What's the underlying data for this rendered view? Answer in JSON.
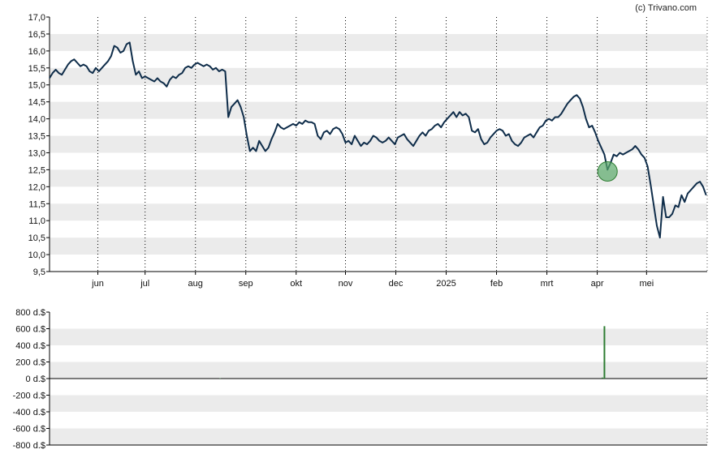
{
  "credit": "(c) Trivano.com",
  "colors": {
    "price_line": "#0f2d4a",
    "band": "#ebebeb",
    "axis": "#000000",
    "volume_bar": "#2e7d32",
    "marker_fill": "#5aaa6a",
    "marker_stroke": "#2e7d32"
  },
  "chart_data": [
    {
      "type": "line",
      "x_tick_labels": [
        "jun",
        "jul",
        "aug",
        "sep",
        "okt",
        "nov",
        "dec",
        "2025",
        "feb",
        "mrt",
        "apr",
        "mei"
      ],
      "y_tick_labels": [
        "17,0",
        "16,5",
        "16,0",
        "15,5",
        "15,0",
        "14,5",
        "14,0",
        "13,5",
        "13,0",
        "12,5",
        "12,0",
        "11,5",
        "11,0",
        "10,5",
        "10,0",
        "9,5"
      ],
      "ylim": [
        9.5,
        17.0
      ],
      "grid": "alternating horizontal bands, dotted vertical lines at month ticks",
      "series": [
        {
          "points": [
            [
              0.0,
              15.2
            ],
            [
              0.3,
              15.35
            ],
            [
              0.6,
              15.45
            ],
            [
              0.9,
              15.35
            ],
            [
              1.2,
              15.3
            ],
            [
              1.5,
              15.45
            ],
            [
              1.8,
              15.6
            ],
            [
              2.1,
              15.7
            ],
            [
              2.4,
              15.75
            ],
            [
              2.7,
              15.65
            ],
            [
              3.0,
              15.55
            ],
            [
              3.3,
              15.6
            ],
            [
              3.6,
              15.55
            ],
            [
              3.9,
              15.4
            ],
            [
              4.2,
              15.35
            ],
            [
              4.5,
              15.5
            ],
            [
              4.8,
              15.4
            ],
            [
              5.1,
              15.5
            ],
            [
              5.4,
              15.6
            ],
            [
              5.7,
              15.7
            ],
            [
              6.0,
              15.85
            ],
            [
              6.3,
              16.15
            ],
            [
              6.6,
              16.1
            ],
            [
              6.9,
              15.95
            ],
            [
              7.2,
              16.0
            ],
            [
              7.5,
              16.2
            ],
            [
              7.8,
              16.25
            ],
            [
              8.1,
              15.7
            ],
            [
              8.4,
              15.3
            ],
            [
              8.7,
              15.4
            ],
            [
              9.0,
              15.2
            ],
            [
              9.3,
              15.25
            ],
            [
              9.6,
              15.2
            ],
            [
              9.9,
              15.15
            ],
            [
              10.2,
              15.1
            ],
            [
              10.5,
              15.2
            ],
            [
              10.8,
              15.1
            ],
            [
              11.1,
              15.05
            ],
            [
              11.4,
              14.95
            ],
            [
              11.7,
              15.15
            ],
            [
              12.0,
              15.25
            ],
            [
              12.3,
              15.2
            ],
            [
              12.6,
              15.3
            ],
            [
              12.9,
              15.35
            ],
            [
              13.2,
              15.5
            ],
            [
              13.5,
              15.55
            ],
            [
              13.8,
              15.5
            ],
            [
              14.1,
              15.6
            ],
            [
              14.4,
              15.65
            ],
            [
              14.7,
              15.6
            ],
            [
              15.0,
              15.55
            ],
            [
              15.3,
              15.6
            ],
            [
              15.6,
              15.55
            ],
            [
              15.9,
              15.45
            ],
            [
              16.2,
              15.5
            ],
            [
              16.5,
              15.4
            ],
            [
              16.8,
              15.45
            ],
            [
              17.1,
              15.4
            ],
            [
              17.4,
              14.05
            ],
            [
              17.7,
              14.35
            ],
            [
              18.0,
              14.45
            ],
            [
              18.3,
              14.55
            ],
            [
              18.6,
              14.35
            ],
            [
              18.9,
              14.05
            ],
            [
              19.2,
              13.5
            ],
            [
              19.5,
              13.05
            ],
            [
              19.8,
              13.15
            ],
            [
              20.1,
              13.05
            ],
            [
              20.4,
              13.35
            ],
            [
              20.7,
              13.2
            ],
            [
              21.0,
              13.05
            ],
            [
              21.3,
              13.15
            ],
            [
              21.6,
              13.4
            ],
            [
              21.9,
              13.6
            ],
            [
              22.2,
              13.85
            ],
            [
              22.5,
              13.75
            ],
            [
              22.8,
              13.7
            ],
            [
              23.1,
              13.75
            ],
            [
              23.4,
              13.8
            ],
            [
              23.7,
              13.85
            ],
            [
              24.0,
              13.8
            ],
            [
              24.3,
              13.9
            ],
            [
              24.6,
              13.85
            ],
            [
              24.9,
              13.95
            ],
            [
              25.2,
              13.9
            ],
            [
              25.5,
              13.9
            ],
            [
              25.8,
              13.85
            ],
            [
              26.1,
              13.5
            ],
            [
              26.4,
              13.4
            ],
            [
              26.7,
              13.6
            ],
            [
              27.0,
              13.65
            ],
            [
              27.3,
              13.55
            ],
            [
              27.6,
              13.7
            ],
            [
              27.9,
              13.75
            ],
            [
              28.2,
              13.7
            ],
            [
              28.5,
              13.55
            ],
            [
              28.8,
              13.3
            ],
            [
              29.1,
              13.35
            ],
            [
              29.4,
              13.25
            ],
            [
              29.7,
              13.5
            ],
            [
              30.0,
              13.35
            ],
            [
              30.3,
              13.2
            ],
            [
              30.6,
              13.3
            ],
            [
              30.9,
              13.25
            ],
            [
              31.2,
              13.35
            ],
            [
              31.5,
              13.5
            ],
            [
              31.8,
              13.45
            ],
            [
              32.1,
              13.35
            ],
            [
              32.4,
              13.3
            ],
            [
              32.7,
              13.35
            ],
            [
              33.0,
              13.45
            ],
            [
              33.3,
              13.35
            ],
            [
              33.6,
              13.25
            ],
            [
              33.9,
              13.45
            ],
            [
              34.2,
              13.5
            ],
            [
              34.5,
              13.55
            ],
            [
              34.8,
              13.4
            ],
            [
              35.1,
              13.3
            ],
            [
              35.4,
              13.2
            ],
            [
              35.7,
              13.35
            ],
            [
              36.0,
              13.5
            ],
            [
              36.3,
              13.6
            ],
            [
              36.6,
              13.5
            ],
            [
              36.9,
              13.65
            ],
            [
              37.2,
              13.7
            ],
            [
              37.5,
              13.8
            ],
            [
              37.8,
              13.85
            ],
            [
              38.1,
              13.75
            ],
            [
              38.4,
              13.9
            ],
            [
              38.7,
              14.0
            ],
            [
              39.0,
              14.1
            ],
            [
              39.3,
              14.2
            ],
            [
              39.6,
              14.05
            ],
            [
              39.9,
              14.2
            ],
            [
              40.2,
              14.1
            ],
            [
              40.5,
              14.15
            ],
            [
              40.8,
              14.05
            ],
            [
              41.1,
              13.65
            ],
            [
              41.4,
              13.6
            ],
            [
              41.7,
              13.7
            ],
            [
              42.0,
              13.4
            ],
            [
              42.3,
              13.25
            ],
            [
              42.6,
              13.3
            ],
            [
              42.9,
              13.45
            ],
            [
              43.2,
              13.55
            ],
            [
              43.5,
              13.65
            ],
            [
              43.8,
              13.7
            ],
            [
              44.1,
              13.65
            ],
            [
              44.4,
              13.5
            ],
            [
              44.7,
              13.55
            ],
            [
              45.0,
              13.35
            ],
            [
              45.3,
              13.25
            ],
            [
              45.6,
              13.2
            ],
            [
              45.9,
              13.3
            ],
            [
              46.2,
              13.45
            ],
            [
              46.5,
              13.5
            ],
            [
              46.8,
              13.55
            ],
            [
              47.1,
              13.45
            ],
            [
              47.4,
              13.6
            ],
            [
              47.7,
              13.75
            ],
            [
              48.0,
              13.8
            ],
            [
              48.3,
              13.95
            ],
            [
              48.6,
              14.0
            ],
            [
              48.9,
              13.95
            ],
            [
              49.2,
              14.05
            ],
            [
              49.5,
              14.05
            ],
            [
              49.8,
              14.15
            ],
            [
              50.1,
              14.3
            ],
            [
              50.4,
              14.45
            ],
            [
              50.7,
              14.55
            ],
            [
              51.0,
              14.65
            ],
            [
              51.3,
              14.7
            ],
            [
              51.6,
              14.6
            ],
            [
              51.9,
              14.35
            ],
            [
              52.2,
              14.0
            ],
            [
              52.5,
              13.75
            ],
            [
              52.8,
              13.8
            ],
            [
              53.1,
              13.6
            ],
            [
              53.4,
              13.35
            ],
            [
              53.7,
              13.15
            ],
            [
              54.0,
              12.95
            ],
            [
              54.3,
              12.5
            ],
            [
              54.6,
              12.7
            ],
            [
              54.9,
              12.95
            ],
            [
              55.2,
              12.9
            ],
            [
              55.5,
              13.0
            ],
            [
              55.8,
              12.95
            ],
            [
              56.1,
              13.0
            ],
            [
              56.4,
              13.05
            ],
            [
              56.7,
              13.1
            ],
            [
              57.0,
              13.2
            ],
            [
              57.3,
              13.1
            ],
            [
              57.6,
              12.95
            ],
            [
              57.9,
              12.85
            ],
            [
              58.2,
              12.6
            ],
            [
              58.5,
              12.05
            ],
            [
              58.8,
              11.45
            ],
            [
              59.1,
              10.85
            ],
            [
              59.4,
              10.5
            ],
            [
              59.7,
              11.7
            ],
            [
              60.0,
              11.1
            ],
            [
              60.3,
              11.1
            ],
            [
              60.6,
              11.2
            ],
            [
              60.9,
              11.45
            ],
            [
              61.2,
              11.4
            ],
            [
              61.5,
              11.75
            ],
            [
              61.8,
              11.55
            ],
            [
              62.1,
              11.8
            ],
            [
              62.4,
              11.9
            ],
            [
              62.7,
              12.0
            ],
            [
              63.0,
              12.1
            ],
            [
              63.3,
              12.15
            ],
            [
              63.6,
              12.0
            ],
            [
              63.9,
              11.75
            ]
          ]
        }
      ],
      "marker": {
        "x": 54.3,
        "y": 12.45
      },
      "x_tick_positions": [
        4.7,
        9.3,
        14.2,
        19.1,
        24.0,
        28.8,
        33.7,
        38.6,
        43.5,
        48.4,
        53.3,
        58.1
      ]
    },
    {
      "type": "bar",
      "y_tick_labels": [
        "800 d.$",
        "600 d.$",
        "400 d.$",
        "200 d.$",
        "0 d.$",
        "-200 d.$",
        "-400 d.$",
        "-600 d.$",
        "-800 d.$"
      ],
      "ylim": [
        -800,
        800
      ],
      "grid": "alternating horizontal bands",
      "bars": [
        {
          "x": 16.6,
          "value": 4
        },
        {
          "x": 54.0,
          "value": 630
        },
        {
          "x": 53.8,
          "value": 12
        }
      ]
    }
  ]
}
